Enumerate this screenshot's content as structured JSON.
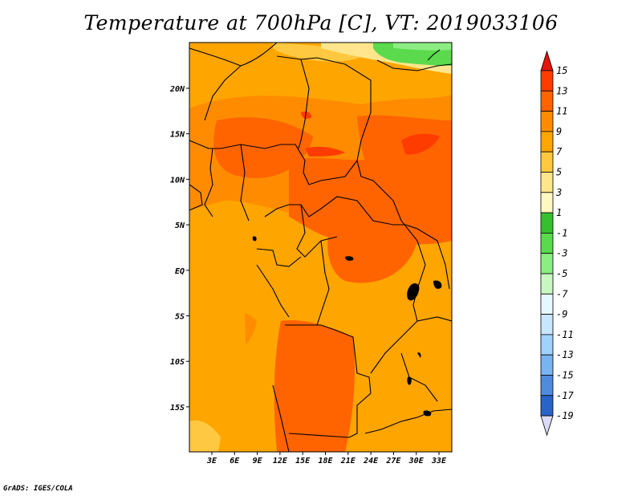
{
  "title": "Temperature at 700hPa [C], VT: 2019033106",
  "credit": "GrADS: IGES/COLA",
  "map": {
    "lat_labels": [
      "20N",
      "15N",
      "10N",
      "5N",
      "EQ",
      "5S",
      "10S",
      "15S"
    ],
    "lon_labels": [
      "3E",
      "6E",
      "9E",
      "12E",
      "15E",
      "18E",
      "21E",
      "24E",
      "27E",
      "30E",
      "33E"
    ]
  },
  "colorbar": {
    "labels": [
      "15",
      "13",
      "11",
      "9",
      "7",
      "5",
      "3",
      "1",
      "-1",
      "-3",
      "-5",
      "-7",
      "-9",
      "-11",
      "-13",
      "-15",
      "-17",
      "-19"
    ],
    "colors": [
      "#e6140a",
      "#ff3c00",
      "#ff6400",
      "#ff8c00",
      "#ffa500",
      "#ffc840",
      "#ffe68c",
      "#fff8c0",
      "#36c030",
      "#5ada4c",
      "#8ced82",
      "#c8f8c0",
      "#e6f8ff",
      "#c8e6ff",
      "#a0d2ff",
      "#78b4f0",
      "#508cdc",
      "#2864c8",
      "#1446b4",
      "#0a2896",
      "#0a0a64"
    ],
    "top_arrow_color": "#e6140a",
    "bottom_arrow_color": "#dcdcf8"
  },
  "chart_data": {
    "type": "heatmap",
    "variable": "Temperature at 700hPa [C]",
    "valid_time": "2019033106",
    "lon_range": [
      0,
      35
    ],
    "lat_range": [
      -20,
      25
    ],
    "colorbar_levels": [
      15,
      13,
      11,
      9,
      7,
      5,
      3,
      1,
      -1,
      -3,
      -5,
      -7,
      -9,
      -11,
      -13,
      -15,
      -17,
      -19
    ]
  }
}
